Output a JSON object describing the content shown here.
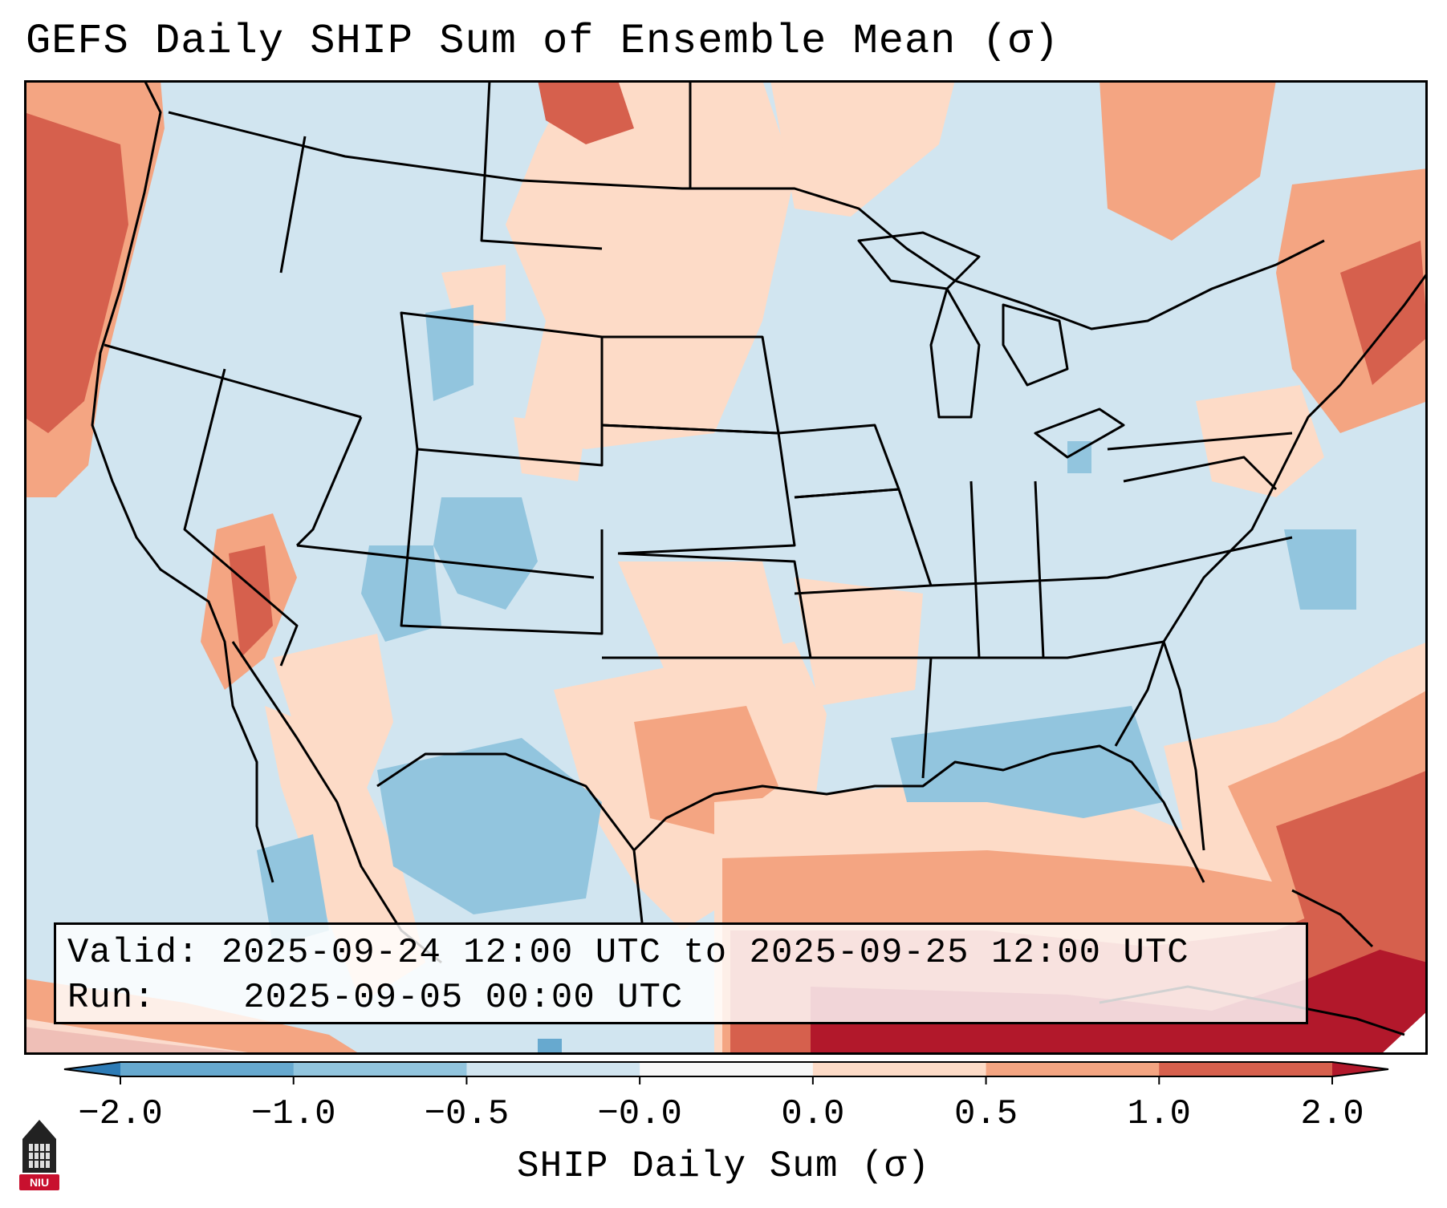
{
  "title": "GEFS Daily SHIP Sum of Ensemble Mean (σ)",
  "info": {
    "valid_label": "Valid:",
    "valid_range": "2025-09-24 12:00 UTC to 2025-09-25 12:00 UTC",
    "run_label": "Run:",
    "run_time": "2025-09-05 00:00 UTC"
  },
  "colorbar": {
    "label": "SHIP Daily Sum (σ)",
    "ticks": [
      "−2.0",
      "−1.0",
      "−0.5",
      "−0.0",
      "0.0",
      "0.5",
      "1.0",
      "2.0"
    ],
    "colors": [
      "#2c7bb6",
      "#67a9cf",
      "#92c5de",
      "#d1e5f0",
      "#f7f7f7",
      "#fddbc7",
      "#f4a582",
      "#d6604d",
      "#b2182b"
    ]
  },
  "map": {
    "region": "Contiguous United States",
    "field_colors": {
      "strong_neg": "#67a9cf",
      "mod_neg": "#92c5de",
      "weak_neg": "#d1e5f0",
      "weak_pos": "#fddbc7",
      "mod_pos": "#f4a582",
      "strong_pos": "#d6604d",
      "extreme_pos": "#b2182b"
    }
  },
  "logo": {
    "text": "NIU",
    "color": "#c8102e"
  }
}
